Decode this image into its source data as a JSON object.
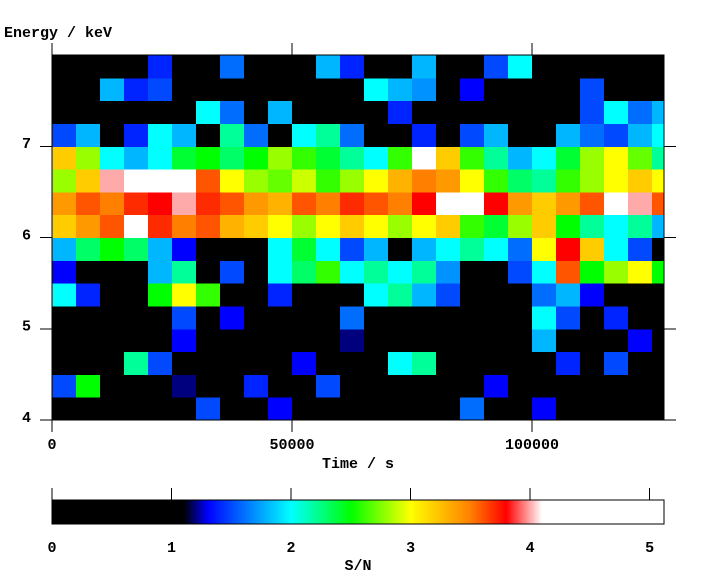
{
  "chart_data": {
    "type": "heatmap",
    "ylabel": "Energy / keV",
    "xlabel": "Time / s",
    "colorbar_label": "S/N",
    "xlim": [
      0,
      127500
    ],
    "xticks": [
      0,
      50000,
      100000
    ],
    "ylim": [
      4,
      8
    ],
    "yticks": [
      4,
      5,
      6,
      7
    ],
    "zlim": [
      0,
      5.12
    ],
    "zticks": [
      0,
      1,
      2,
      3,
      4,
      5
    ],
    "colorscale": [
      {
        "value": 0,
        "color": "#000000"
      },
      {
        "value": 1.1,
        "color": "#000000"
      },
      {
        "value": 1.3,
        "color": "#0000ff"
      },
      {
        "value": 2.0,
        "color": "#00ffff"
      },
      {
        "value": 2.5,
        "color": "#00ff00"
      },
      {
        "value": 3.0,
        "color": "#ffff00"
      },
      {
        "value": 3.5,
        "color": "#ff8000"
      },
      {
        "value": 3.8,
        "color": "#ff0000"
      },
      {
        "value": 4.1,
        "color": "#ffffff"
      },
      {
        "value": 5.12,
        "color": "#ffffff"
      }
    ],
    "xbins": [
      0,
      5000,
      10000,
      15000,
      20000,
      25000,
      30000,
      35000,
      40000,
      45000,
      50000,
      55000,
      60000,
      65000,
      70000,
      75000,
      80000,
      85000,
      90000,
      95000,
      100000,
      105000,
      110000,
      115000,
      120000,
      125000,
      127500
    ],
    "ybins": [
      4,
      4.25,
      4.5,
      4.75,
      5,
      5.25,
      5.5,
      5.75,
      6,
      6.25,
      6.5,
      6.75,
      7,
      7.25,
      7.5,
      7.75,
      8
    ],
    "z": [
      [
        0,
        0,
        0,
        0,
        0,
        0,
        1.5,
        0,
        0,
        1.3,
        0,
        0,
        0,
        0,
        0,
        0,
        0,
        1.6,
        0,
        0,
        1.3,
        0,
        0,
        0,
        0,
        0
      ],
      [
        1.5,
        2.5,
        0,
        0,
        0,
        1.2,
        0,
        0,
        1.4,
        0,
        0,
        1.5,
        0,
        0,
        0,
        0,
        0,
        0,
        1.3,
        0,
        0,
        0,
        0,
        0,
        0,
        0
      ],
      [
        0,
        0,
        0,
        2.2,
        1.5,
        0,
        0,
        0,
        0,
        0,
        1.3,
        0,
        0,
        0,
        2.0,
        2.2,
        0,
        0,
        0,
        0,
        0,
        1.4,
        0,
        1.5,
        0,
        0
      ],
      [
        0,
        0,
        0,
        0,
        0,
        1.3,
        0,
        0,
        0,
        0,
        0,
        0,
        1.2,
        0,
        0,
        0,
        0,
        0,
        0,
        0,
        1.8,
        0,
        0,
        0,
        1.3,
        0
      ],
      [
        0,
        0,
        0,
        0,
        0,
        1.5,
        0,
        1.3,
        0,
        0,
        0,
        0,
        1.6,
        0,
        0,
        0,
        0,
        0,
        0,
        0,
        2.0,
        1.5,
        0,
        1.4,
        0,
        0
      ],
      [
        2.0,
        1.4,
        0,
        0,
        2.5,
        3.0,
        2.6,
        0,
        0,
        1.4,
        0,
        0,
        0,
        2.0,
        2.2,
        1.8,
        1.5,
        0,
        0,
        0,
        1.6,
        1.8,
        1.3,
        0,
        0,
        0
      ],
      [
        1.3,
        0,
        0,
        0,
        1.8,
        2.2,
        0,
        1.5,
        0,
        2.0,
        2.3,
        2.6,
        2.0,
        2.2,
        2.0,
        2.2,
        1.7,
        0,
        0,
        1.5,
        2.0,
        3.6,
        2.5,
        2.8,
        3.0,
        2.5
      ],
      [
        1.8,
        2.3,
        2.5,
        2.3,
        1.8,
        1.3,
        0,
        0,
        0,
        2.0,
        2.4,
        2.0,
        1.5,
        1.8,
        0,
        1.8,
        2.0,
        2.2,
        2.0,
        1.6,
        3.0,
        3.8,
        3.2,
        2.0,
        1.5,
        0
      ],
      [
        3.2,
        3.4,
        3.6,
        4.1,
        3.7,
        3.5,
        3.6,
        3.3,
        3.2,
        3.0,
        2.8,
        3.0,
        3.2,
        3.0,
        2.8,
        3.0,
        3.2,
        2.6,
        2.4,
        2.8,
        3.2,
        2.5,
        2.2,
        2.0,
        2.2,
        1.8
      ],
      [
        3.4,
        3.6,
        3.5,
        3.7,
        3.8,
        4.0,
        3.7,
        3.6,
        3.4,
        3.3,
        3.6,
        3.5,
        3.7,
        3.6,
        3.5,
        3.8,
        4.1,
        4.2,
        3.8,
        3.4,
        3.2,
        3.4,
        3.6,
        4.1,
        4.0,
        3.6
      ],
      [
        2.8,
        3.2,
        4.0,
        4.3,
        4.5,
        4.2,
        3.6,
        3.0,
        2.8,
        2.7,
        2.9,
        2.6,
        2.8,
        3.0,
        3.3,
        3.5,
        3.4,
        3.0,
        2.6,
        2.3,
        2.2,
        2.6,
        2.8,
        3.0,
        3.2,
        3.0
      ],
      [
        3.2,
        2.8,
        2.0,
        1.8,
        2.0,
        2.4,
        2.5,
        2.3,
        2.5,
        2.8,
        2.6,
        2.4,
        2.2,
        2.0,
        2.6,
        4.1,
        3.2,
        2.6,
        2.2,
        1.8,
        2.0,
        2.4,
        2.8,
        3.0,
        2.7,
        2.2
      ],
      [
        1.5,
        1.8,
        0,
        1.4,
        2.0,
        1.8,
        0,
        2.2,
        1.6,
        0,
        2.0,
        2.2,
        1.6,
        0,
        0,
        1.4,
        0,
        1.5,
        1.8,
        0,
        0,
        1.8,
        1.6,
        1.5,
        1.8,
        2.0
      ],
      [
        0,
        0,
        0,
        0,
        0,
        0,
        2.0,
        1.6,
        0,
        1.8,
        0,
        0,
        0,
        0,
        1.4,
        0,
        0,
        0,
        0,
        0,
        0,
        0,
        1.5,
        2.0,
        1.6,
        1.8
      ],
      [
        0,
        0,
        1.8,
        1.4,
        1.5,
        0,
        0,
        0,
        0,
        0,
        0,
        0,
        0,
        2.0,
        1.8,
        1.7,
        0,
        1.3,
        0,
        0,
        0,
        0,
        1.5,
        0,
        0,
        0
      ],
      [
        0,
        0,
        0,
        0,
        1.4,
        0,
        0,
        1.6,
        0,
        0,
        0,
        1.8,
        1.4,
        0,
        0,
        1.8,
        0,
        0,
        1.5,
        2.0,
        0,
        0,
        0,
        0,
        0,
        0
      ]
    ]
  }
}
